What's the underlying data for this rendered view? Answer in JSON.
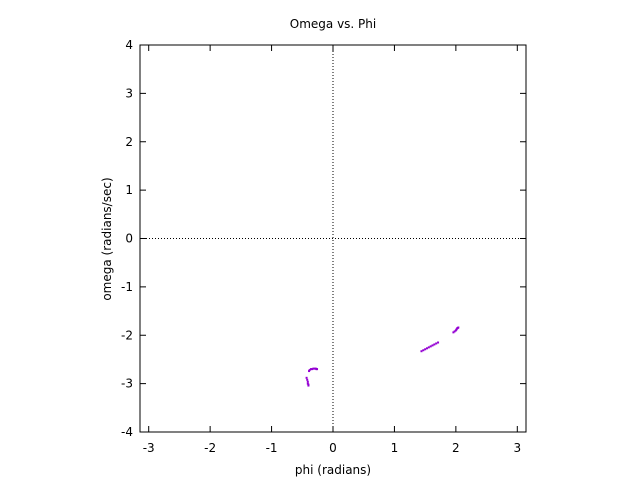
{
  "chart_data": {
    "type": "scatter",
    "title": "Omega vs. Phi",
    "xlabel": "phi (radians)",
    "ylabel": "omega (radians/sec)",
    "xlim": [
      -3.1416,
      3.1416
    ],
    "ylim": [
      -4,
      4
    ],
    "xticks": [
      -3,
      -2,
      -1,
      0,
      1,
      2,
      3
    ],
    "yticks": [
      -4,
      -3,
      -2,
      -1,
      0,
      1,
      2,
      3,
      4
    ],
    "xtick_labels": [
      "-3",
      "-2",
      "-1",
      "0",
      "1",
      "2",
      "3"
    ],
    "ytick_labels": [
      "-4",
      "-3",
      "-2",
      "-1",
      "0",
      "1",
      "2",
      "3",
      "4"
    ],
    "zero_lines": true,
    "grid": false,
    "legend": "none",
    "point_color": "#9400d3",
    "series": [
      {
        "x": [
          -0.43,
          -0.42,
          -0.41,
          -0.41,
          -0.4,
          -0.4,
          -0.39,
          -0.38,
          -0.36,
          -0.34,
          -0.32,
          -0.3,
          -0.28,
          -0.27,
          -0.26
        ],
        "y": [
          -2.88,
          -2.92,
          -2.96,
          -3.0,
          -3.02,
          -3.04,
          -2.74,
          -2.72,
          -2.7,
          -2.7,
          -2.69,
          -2.69,
          -2.69,
          -2.7,
          -2.7
        ]
      },
      {
        "x": [
          1.44,
          1.47,
          1.5,
          1.53,
          1.56,
          1.59,
          1.62,
          1.65,
          1.68,
          1.71
        ],
        "y": [
          -2.33,
          -2.31,
          -2.29,
          -2.27,
          -2.25,
          -2.23,
          -2.21,
          -2.19,
          -2.17,
          -2.15
        ]
      },
      {
        "x": [
          1.96,
          1.98,
          2.0,
          2.01,
          2.02,
          2.03,
          2.04
        ],
        "y": [
          -1.94,
          -1.92,
          -1.9,
          -1.88,
          -1.86,
          -1.85,
          -1.84
        ]
      }
    ]
  }
}
